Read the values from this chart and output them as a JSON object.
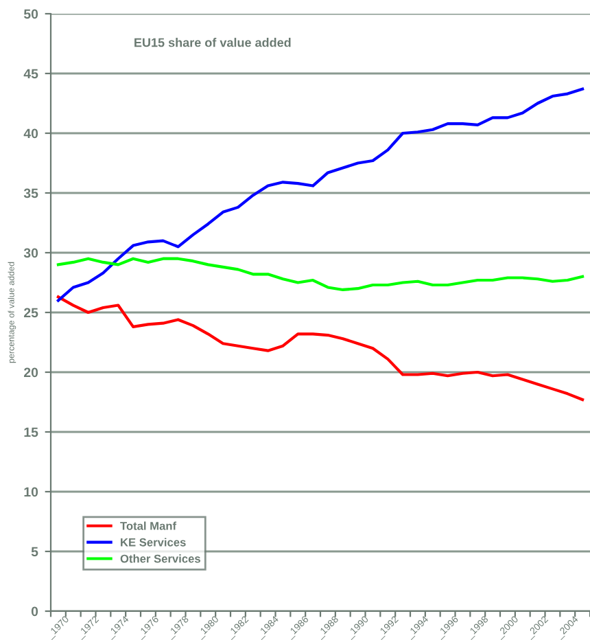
{
  "chart_data": {
    "type": "line",
    "title": "EU15 share of value added",
    "ylabel": "percentage of value added",
    "categories": [
      "_1970",
      null,
      "_1972",
      null,
      "_1974",
      null,
      "_1976",
      null,
      "_1978",
      null,
      "_1980",
      null,
      "_1982",
      null,
      "_1984",
      null,
      "_1986",
      null,
      "_1988",
      null,
      "_1990",
      null,
      "_1992",
      null,
      "_1994",
      null,
      "_1996",
      null,
      "_1998",
      null,
      "_2000",
      null,
      "_2002",
      null,
      "_2004",
      null
    ],
    "series": [
      {
        "name": "Total Manf",
        "color": "#ff0000",
        "values": [
          26.3,
          25.6,
          25.0,
          25.4,
          25.6,
          23.8,
          24.0,
          24.1,
          24.4,
          23.9,
          23.2,
          22.4,
          22.2,
          22.0,
          21.8,
          22.2,
          23.2,
          23.2,
          23.1,
          22.8,
          22.4,
          22.0,
          21.1,
          19.8,
          19.8,
          19.9,
          19.7,
          19.9,
          20.0,
          19.7,
          19.8,
          19.4,
          19.0,
          18.6,
          18.2,
          17.7
        ]
      },
      {
        "name": "KE Services",
        "color": "#0000ff",
        "values": [
          26.0,
          27.1,
          27.5,
          28.3,
          29.5,
          30.6,
          30.9,
          31.0,
          30.5,
          31.5,
          32.4,
          33.4,
          33.8,
          34.8,
          35.6,
          35.9,
          35.8,
          35.6,
          36.7,
          37.1,
          37.5,
          37.7,
          38.6,
          40.0,
          40.1,
          40.3,
          40.8,
          40.8,
          40.7,
          41.3,
          41.3,
          41.7,
          42.5,
          43.1,
          43.3,
          43.7
        ]
      },
      {
        "name": "Other Services",
        "color": "#00ff00",
        "values": [
          29.0,
          29.2,
          29.5,
          29.2,
          29.0,
          29.5,
          29.2,
          29.5,
          29.5,
          29.3,
          29.0,
          28.8,
          28.6,
          28.2,
          28.2,
          27.8,
          27.5,
          27.7,
          27.1,
          26.9,
          27.0,
          27.3,
          27.3,
          27.5,
          27.6,
          27.3,
          27.3,
          27.5,
          27.7,
          27.7,
          27.9,
          27.9,
          27.8,
          27.6,
          27.7,
          28.0
        ]
      }
    ],
    "ylim": [
      0,
      50
    ],
    "yticks": [
      0,
      5,
      10,
      15,
      20,
      25,
      30,
      35,
      40,
      45,
      50
    ],
    "grid": "y",
    "legend": "bottom left",
    "marker": "none",
    "line_style": "solid"
  }
}
